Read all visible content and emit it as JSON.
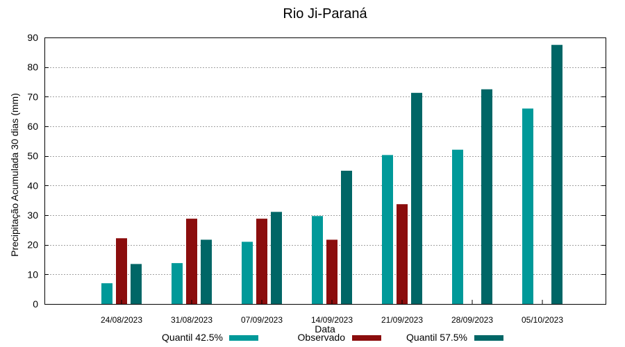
{
  "chart_data": {
    "type": "bar",
    "title": "Rio Ji-Paraná",
    "xlabel": "Data",
    "ylabel": "Precipitação Acumulada 30 dias (mm)",
    "ylim": [
      0,
      90
    ],
    "yticks": [
      0,
      10,
      20,
      30,
      40,
      50,
      60,
      70,
      80,
      90
    ],
    "grid": true,
    "legend_position": "bottom",
    "categories": [
      "24/08/2023",
      "31/08/2023",
      "07/09/2023",
      "14/09/2023",
      "21/09/2023",
      "28/09/2023",
      "05/10/2023"
    ],
    "series": [
      {
        "name": "Quantil 42.5%",
        "color": "#009999",
        "values": [
          7,
          13.8,
          21,
          29.7,
          50.3,
          52.1,
          66
        ]
      },
      {
        "name": "Observado",
        "color": "#8b0d0d",
        "values": [
          22.2,
          28.8,
          28.8,
          21.7,
          33.7,
          null,
          null
        ]
      },
      {
        "name": "Quantil 57.5%",
        "color": "#006666",
        "values": [
          13.5,
          21.7,
          31.1,
          45,
          71.3,
          72.5,
          87.5
        ]
      }
    ]
  }
}
